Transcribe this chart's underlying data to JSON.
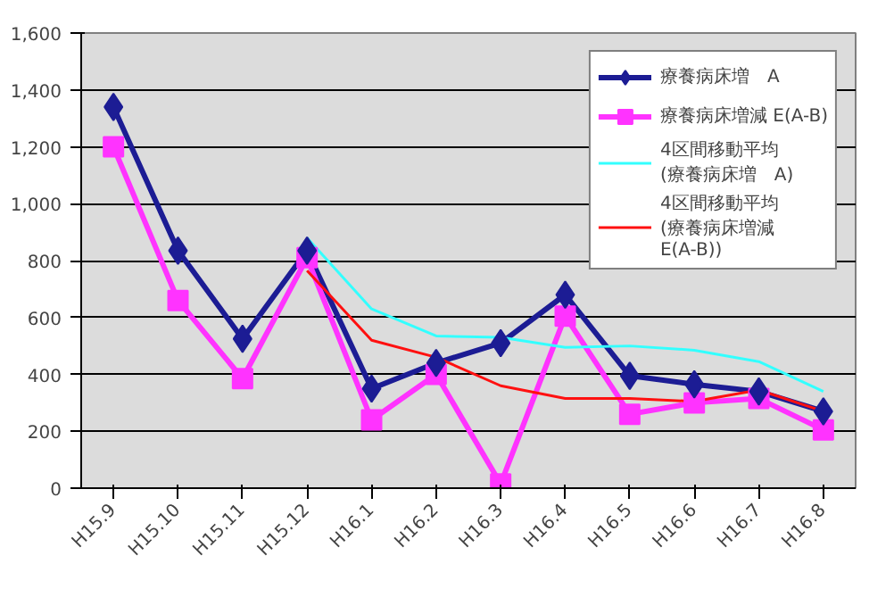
{
  "chart_data": {
    "type": "line",
    "categories": [
      "H15.9",
      "H15.10",
      "H15.11",
      "H15.12",
      "H16.1",
      "H16.2",
      "H16.3",
      "H16.4",
      "H16.5",
      "H16.6",
      "H16.7",
      "H16.8"
    ],
    "series": [
      {
        "name": "療養病床増　A",
        "color": "#1c1c94",
        "marker": "diamond",
        "values": [
          1340,
          835,
          525,
          835,
          350,
          440,
          510,
          680,
          395,
          365,
          340,
          270
        ]
      },
      {
        "name": "療養病床増減 E(A-B)",
        "color": "#ff33ff",
        "marker": "square",
        "values": [
          1200,
          660,
          385,
          810,
          240,
          400,
          15,
          605,
          260,
          300,
          315,
          205
        ]
      },
      {
        "name": "4区間移動平均 (療養病床増　A)",
        "color": "#33ffff",
        "marker": "none",
        "values": [
          null,
          null,
          null,
          880,
          630,
          535,
          530,
          495,
          500,
          485,
          445,
          340
        ]
      },
      {
        "name": "4区間移動平均 (療養病床増減 E(A-B))",
        "color": "#ff1010",
        "marker": "none",
        "values": [
          null,
          null,
          null,
          765,
          520,
          460,
          360,
          315,
          315,
          305,
          345,
          270
        ]
      }
    ],
    "ylim": [
      0,
      1600
    ],
    "yticks": [
      {
        "value": 0,
        "label": "0"
      },
      {
        "value": 200,
        "label": "200"
      },
      {
        "value": 400,
        "label": "400"
      },
      {
        "value": 600,
        "label": "600"
      },
      {
        "value": 800,
        "label": "800"
      },
      {
        "value": 1000,
        "label": "1,000"
      },
      {
        "value": 1200,
        "label": "1,200"
      },
      {
        "value": 1400,
        "label": "1,400"
      },
      {
        "value": 1600,
        "label": "1,600"
      }
    ],
    "grid": "y",
    "legend": "top right"
  }
}
